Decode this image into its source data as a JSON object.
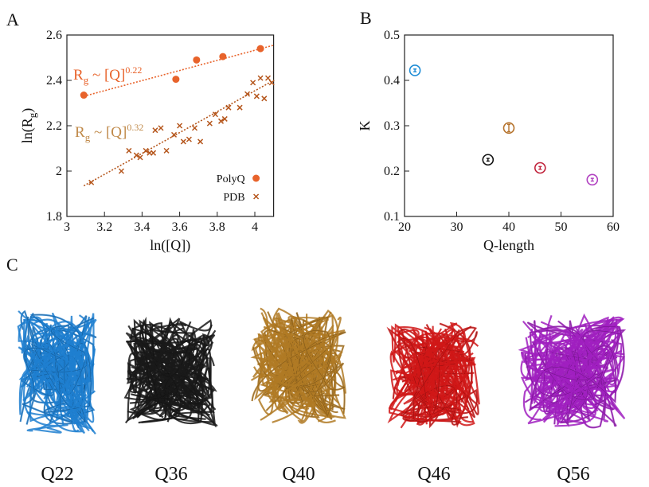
{
  "chart_data": [
    {
      "type": "scatter",
      "panel_label": "A",
      "xlabel": [
        "ln([Q])"
      ],
      "ylabel": [
        "ln(R",
        "g",
        ")"
      ],
      "xlim": [
        3,
        4.1
      ],
      "xticks": [
        3,
        3.2,
        3.4,
        3.6,
        3.8,
        4
      ],
      "ylim": [
        1.8,
        2.6
      ],
      "yticks": [
        1.8,
        2,
        2.2,
        2.4,
        2.6
      ],
      "series": [
        {
          "name": "PolyQ",
          "color": "#e8632b",
          "marker": "circle",
          "x": [
            3.09,
            3.58,
            3.69,
            3.83,
            4.03
          ],
          "values": [
            2.335,
            2.405,
            2.49,
            2.505,
            2.54
          ]
        },
        {
          "name": "PDB",
          "color": "#b5561c",
          "marker": "cross",
          "x": [
            3.13,
            3.29,
            3.33,
            3.37,
            3.39,
            3.42,
            3.44,
            3.46,
            3.47,
            3.5,
            3.53,
            3.57,
            3.6,
            3.62,
            3.65,
            3.68,
            3.71,
            3.76,
            3.79,
            3.82,
            3.84,
            3.86,
            3.92,
            3.96,
            3.99,
            4.01,
            4.03,
            4.05,
            4.07,
            4.09
          ],
          "values": [
            1.95,
            2.0,
            2.09,
            2.07,
            2.06,
            2.09,
            2.08,
            2.08,
            2.18,
            2.19,
            2.09,
            2.16,
            2.2,
            2.13,
            2.14,
            2.19,
            2.13,
            2.21,
            2.25,
            2.22,
            2.23,
            2.28,
            2.28,
            2.34,
            2.39,
            2.33,
            2.41,
            2.32,
            2.41,
            2.39
          ]
        }
      ],
      "fit_lines": [
        {
          "color": "#e8632b",
          "x": [
            3.09,
            4.1
          ],
          "values": [
            2.33,
            2.555
          ]
        },
        {
          "color": "#b5561c",
          "x": [
            3.09,
            4.1
          ],
          "values": [
            1.935,
            2.4
          ]
        }
      ],
      "annotations": [
        {
          "text": [
            "R",
            "g",
            " ~ [Q]",
            "0.22"
          ],
          "color": "#e8632b"
        },
        {
          "text": [
            "R",
            "g",
            " ~ [Q]",
            "0.32"
          ],
          "color": "#c08a4a"
        }
      ],
      "legend": "lower right"
    },
    {
      "type": "errorbar",
      "panel_label": "B",
      "xlabel": [
        "Q-length"
      ],
      "ylabel": [
        "K"
      ],
      "xlim": [
        20,
        60
      ],
      "xticks": [
        20,
        30,
        40,
        50,
        60
      ],
      "ylim": [
        0.1,
        0.5
      ],
      "yticks": [
        0.1,
        0.2,
        0.3,
        0.4,
        0.5
      ],
      "x": [
        22,
        36,
        40,
        46,
        56
      ],
      "values": [
        0.422,
        0.225,
        0.295,
        0.207,
        0.181
      ],
      "errors": [
        0.003,
        0.003,
        0.008,
        0.003,
        0.003
      ],
      "colors": [
        "#1f8dd6",
        "#111111",
        "#b5722b",
        "#c0213a",
        "#b040c0"
      ]
    }
  ],
  "panel_c": {
    "panel_label": "C",
    "structures": [
      {
        "label": "Q22",
        "color": "#1f7fd0"
      },
      {
        "label": "Q36",
        "color": "#1a1a1a"
      },
      {
        "label": "Q40",
        "color": "#b07a25"
      },
      {
        "label": "Q46",
        "color": "#d01818"
      },
      {
        "label": "Q56",
        "color": "#a020c0"
      }
    ]
  }
}
